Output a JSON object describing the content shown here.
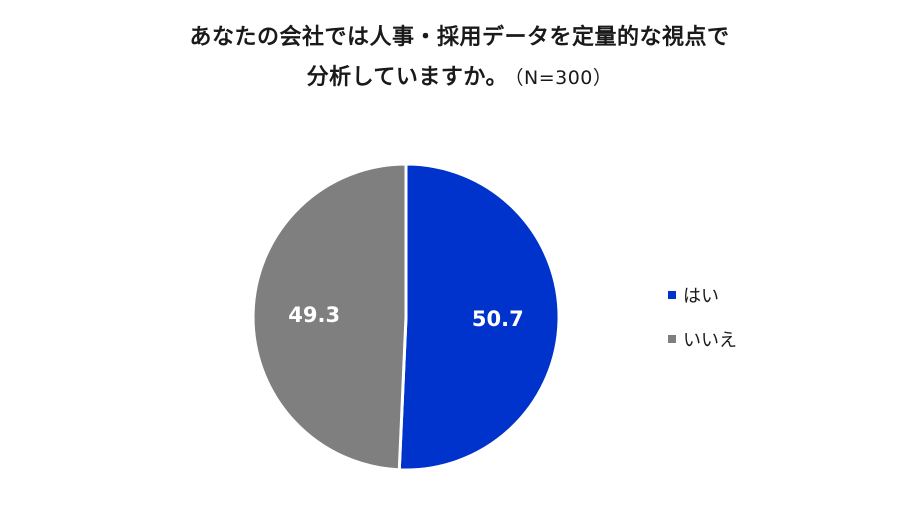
{
  "title": {
    "line1": "あなたの会社では人事・採用データを定量的な視点で",
    "line2": "分析していますか。",
    "note": "（N=300）"
  },
  "chart_data": {
    "type": "pie",
    "categories": [
      "はい",
      "いいえ"
    ],
    "values": [
      50.7,
      49.3
    ],
    "data_labels": [
      "50.7",
      "49.3"
    ],
    "colors": [
      "#0033cc",
      "#7f7f7f"
    ],
    "start": "12 o'clock, clockwise",
    "legend_position": "right"
  }
}
